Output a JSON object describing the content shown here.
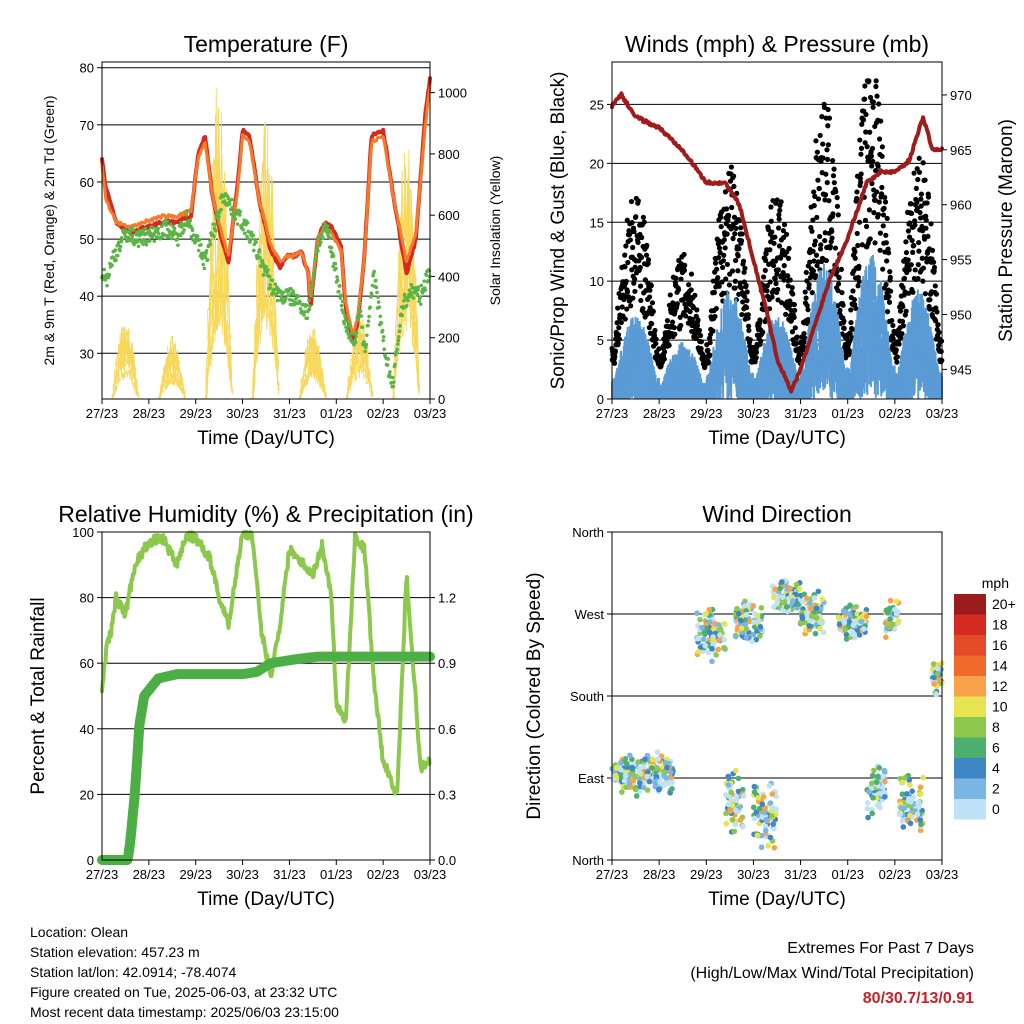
{
  "x_ticks": [
    "27/23",
    "28/23",
    "29/23",
    "30/23",
    "31/23",
    "01/23",
    "02/23",
    "03/23"
  ],
  "chart_data": [
    {
      "type": "line",
      "title": "Temperature (F)",
      "xlabel": "Time (Day/UTC)",
      "ylabel": "2m & 9m T (Red, Orange) & 2m Td (Green)",
      "ylabel_right": "Solar Insolation (Yellow)",
      "ylim": [
        22,
        81
      ],
      "y2lim": [
        0,
        1100
      ],
      "yticks": [
        30,
        40,
        50,
        60,
        70,
        80
      ],
      "y2ticks": [
        0,
        200,
        400,
        600,
        800,
        1000
      ],
      "series": [
        {
          "color": "#d42a20",
          "x": [
            0,
            0.08,
            0.3,
            0.6,
            0.9,
            1.3,
            1.6,
            1.9,
            2.05,
            2.2,
            2.35,
            2.55,
            2.7,
            2.9,
            3.0,
            3.15,
            3.35,
            3.6,
            3.8,
            3.95,
            4.1,
            4.25,
            4.4,
            4.45,
            4.6,
            4.75,
            4.9,
            5.1,
            5.2,
            5.35,
            5.45,
            5.6,
            5.75,
            6.0,
            6.25,
            6.5,
            6.7,
            6.9,
            7.0
          ],
          "y": [
            64,
            59,
            53,
            51,
            52,
            53,
            53,
            54,
            65,
            68,
            58,
            50,
            46,
            60,
            69,
            68,
            57,
            48,
            45,
            47,
            47,
            48,
            44,
            38,
            50,
            53,
            52,
            49,
            38,
            32,
            35,
            47,
            68,
            69,
            56,
            44,
            50,
            72,
            78
          ]
        },
        {
          "color": "#f47b2c",
          "x": [
            0,
            0.08,
            0.3,
            0.6,
            0.9,
            1.3,
            1.6,
            1.9,
            2.05,
            2.2,
            2.35,
            2.55,
            2.7,
            2.9,
            3.0,
            3.15,
            3.35,
            3.6,
            3.8,
            3.95,
            4.1,
            4.25,
            4.4,
            4.45,
            4.6,
            4.75,
            4.9,
            5.1,
            5.2,
            5.35,
            5.45,
            5.6,
            5.75,
            6.0,
            6.25,
            6.5,
            6.7,
            6.9,
            7.0
          ],
          "y": [
            63,
            57,
            53,
            52,
            53,
            54,
            54,
            55,
            64,
            67,
            58,
            51,
            47,
            59,
            68,
            67,
            57,
            49,
            46,
            47,
            47,
            48,
            44,
            39,
            50,
            52,
            51,
            48,
            39,
            33,
            36,
            47,
            67,
            68,
            56,
            46,
            51,
            70,
            77
          ]
        },
        {
          "color": "#5ab446",
          "x": [
            0,
            0.1,
            0.25,
            0.5,
            0.8,
            1.1,
            1.4,
            1.6,
            1.8,
            2.0,
            2.2,
            2.4,
            2.6,
            2.8,
            3.0,
            3.2,
            3.4,
            3.6,
            3.8,
            4.0,
            4.2,
            4.4,
            4.6,
            4.8,
            5.0,
            5.2,
            5.4,
            5.5,
            5.6,
            5.8,
            6.0,
            6.2,
            6.4,
            6.6,
            6.8,
            7.0
          ],
          "y": [
            44,
            43,
            47,
            51,
            50,
            51,
            52,
            50,
            54,
            50,
            46,
            52,
            58,
            55,
            53,
            50,
            46,
            42,
            40,
            40,
            39,
            37,
            49,
            52,
            44,
            35,
            32,
            38,
            30,
            44,
            32,
            24,
            38,
            41,
            40,
            45
          ]
        }
      ],
      "solar_peaks": [
        {
          "day": 0.5,
          "w": 300
        },
        {
          "day": 1.5,
          "w": 210
        },
        {
          "day": 2.5,
          "w": 1080
        },
        {
          "day": 3.5,
          "w": 1060
        },
        {
          "day": 4.5,
          "w": 260
        },
        {
          "day": 5.5,
          "w": 290
        },
        {
          "day": 6.5,
          "w": 1040
        }
      ]
    },
    {
      "type": "scatter",
      "title": "Winds (mph) & Pressure (mb)",
      "xlabel": "Time (Day/UTC)",
      "ylabel": "Sonic/Prop Wind & Gust (Blue, Black)",
      "ylabel_right": "Station Pressure (Maroon)",
      "ylim": [
        0,
        28.6
      ],
      "y2lim": [
        942.3,
        973
      ],
      "yticks": [
        0,
        5,
        10,
        15,
        20,
        25
      ],
      "y2ticks": [
        945,
        950,
        955,
        960,
        965,
        970
      ],
      "gust_peaks": [
        12,
        8,
        14,
        12,
        18,
        22,
        15
      ],
      "wind_peaks": [
        6,
        4,
        8,
        6,
        10,
        11,
        8
      ],
      "pressure": {
        "color": "#a01c1c",
        "x": [
          0,
          0.2,
          0.5,
          1.0,
          1.5,
          2.0,
          2.4,
          2.7,
          3.0,
          3.3,
          3.5,
          3.8,
          4.0,
          4.3,
          4.6,
          5.0,
          5.4,
          5.7,
          6.0,
          6.3,
          6.6,
          6.8,
          7.0
        ],
        "y": [
          969,
          970,
          968,
          967,
          965,
          962,
          962,
          960,
          955,
          950,
          946,
          943,
          945,
          949,
          953,
          957,
          962,
          963,
          963,
          964,
          968,
          965,
          965
        ]
      }
    },
    {
      "type": "line",
      "title": "Relative Humidity (%) & Precipitation (in)",
      "xlabel": "Time (Day/UTC)",
      "ylabel": "Percent & Total Rainfall",
      "ylim": [
        0,
        100
      ],
      "y2lim": [
        0,
        1.5
      ],
      "yticks": [
        0,
        20,
        40,
        60,
        80,
        100
      ],
      "y2ticks": [
        0.0,
        0.3,
        0.6,
        0.9,
        1.2
      ],
      "series": [
        {
          "color": "#8cc84b",
          "x": [
            0,
            0.1,
            0.2,
            0.3,
            0.5,
            0.7,
            1.0,
            1.3,
            1.6,
            1.8,
            2.0,
            2.3,
            2.5,
            2.7,
            3.0,
            3.2,
            3.4,
            3.6,
            3.8,
            4.0,
            4.2,
            4.5,
            4.7,
            4.9,
            5.0,
            5.2,
            5.4,
            5.6,
            5.8,
            6.0,
            6.3,
            6.5,
            6.8,
            7.0
          ],
          "y": [
            52,
            65,
            70,
            80,
            75,
            90,
            97,
            98,
            90,
            99,
            98,
            92,
            80,
            72,
            100,
            99,
            70,
            56,
            72,
            95,
            92,
            87,
            96,
            80,
            48,
            42,
            98,
            95,
            55,
            30,
            20,
            87,
            28,
            30
          ]
        },
        {
          "color": "#4caf45",
          "x": [
            0,
            0.55,
            0.6,
            0.7,
            0.8,
            0.9,
            1.2,
            1.6,
            2.0,
            2.5,
            3.0,
            3.3,
            3.6,
            3.9,
            4.2,
            4.6,
            5.0,
            5.5,
            6.0,
            6.5,
            7.0
          ],
          "y": [
            0,
            0,
            0.08,
            0.3,
            0.62,
            0.75,
            0.83,
            0.85,
            0.85,
            0.85,
            0.85,
            0.86,
            0.9,
            0.91,
            0.92,
            0.93,
            0.93,
            0.93,
            0.93,
            0.93,
            0.93
          ]
        }
      ]
    },
    {
      "type": "scatter",
      "title": "Wind Direction",
      "xlabel": "Time (Day/UTC)",
      "ylabel": "Direction (Colored By Speed)",
      "yticks": [
        "North",
        "East",
        "South",
        "West",
        "North"
      ],
      "legend_title": "mph",
      "legend_labels": [
        "20+",
        "18",
        "16",
        "14",
        "12",
        "10",
        "8",
        "6",
        "4",
        "2",
        "0"
      ],
      "legend_colors": [
        "#9b1c1c",
        "#d42a20",
        "#e24a28",
        "#f06a2c",
        "#f8a24a",
        "#e6e450",
        "#8cc84b",
        "#4caf6e",
        "#3f86c6",
        "#7ab6e4",
        "#bfe2f6"
      ],
      "direction_groups": [
        {
          "x0": 0.0,
          "x1": 1.3,
          "dir": 95,
          "spread": 25
        },
        {
          "x0": 1.8,
          "x1": 2.4,
          "dir": 250,
          "spread": 35
        },
        {
          "x0": 2.4,
          "x1": 2.8,
          "dir": 60,
          "spread": 40
        },
        {
          "x0": 2.6,
          "x1": 3.2,
          "dir": 260,
          "spread": 25
        },
        {
          "x0": 3.0,
          "x1": 3.5,
          "dir": 50,
          "spread": 40
        },
        {
          "x0": 3.4,
          "x1": 4.0,
          "dir": 290,
          "spread": 20
        },
        {
          "x0": 4.0,
          "x1": 4.5,
          "dir": 270,
          "spread": 25
        },
        {
          "x0": 4.8,
          "x1": 5.4,
          "dir": 260,
          "spread": 20
        },
        {
          "x0": 5.4,
          "x1": 5.8,
          "dir": 75,
          "spread": 30
        },
        {
          "x0": 5.8,
          "x1": 6.1,
          "dir": 265,
          "spread": 25
        },
        {
          "x0": 6.1,
          "x1": 6.6,
          "dir": 60,
          "spread": 35
        },
        {
          "x0": 6.8,
          "x1": 7.0,
          "dir": 200,
          "spread": 20
        }
      ]
    }
  ],
  "info": {
    "location": "Location: Olean",
    "elevation": "Station elevation: 457.23 m",
    "latlon": "Station lat/lon: 42.0914; -78.4074",
    "created": "Figure created on Tue, 2025-06-03, at 23:32 UTC",
    "recent": "Most recent data timestamp: 2025/06/03 23:15:00"
  },
  "extremes": {
    "line1": "Extremes For Past 7 Days",
    "line2": "(High/Low/Max Wind/Total Precipitation)",
    "value": "80/30.7/13/0.91"
  }
}
